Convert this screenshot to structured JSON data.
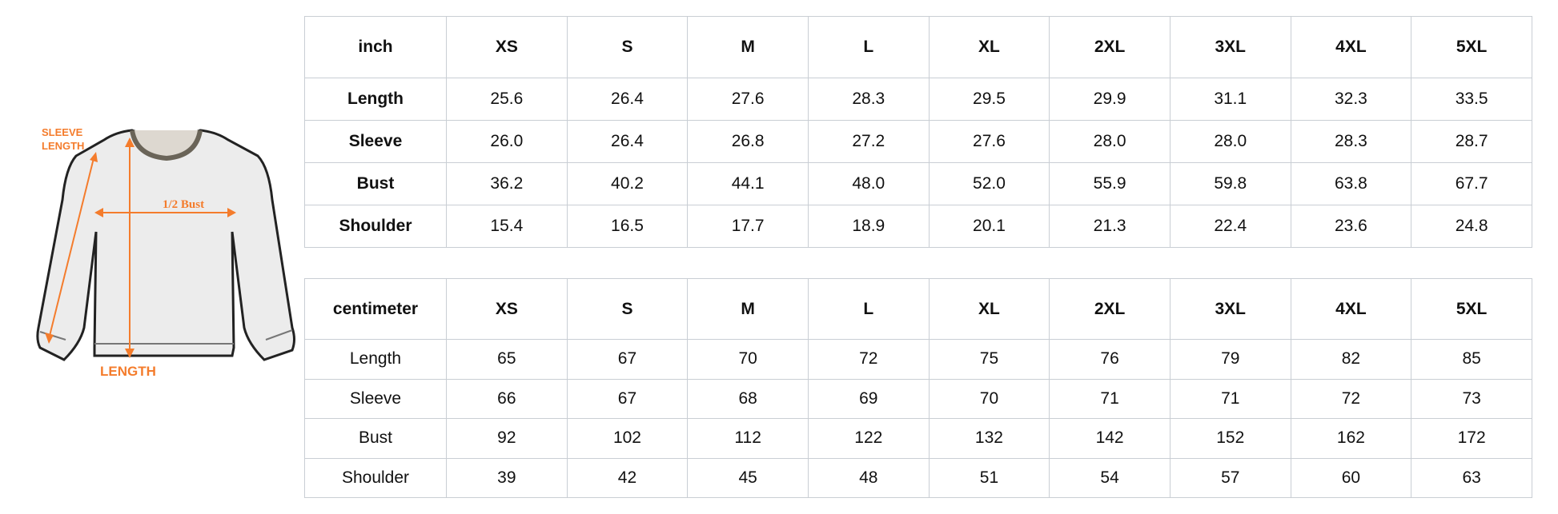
{
  "diagram": {
    "sleeve_length_label_1": "SLEEVE",
    "sleeve_length_label_2": "LENGTH",
    "bust_label": "1/2 Bust",
    "length_label": "LENGTH",
    "accent_color": "#f47c2c"
  },
  "inch_table": {
    "unit": "inch",
    "sizes": [
      "XS",
      "S",
      "M",
      "L",
      "XL",
      "2XL",
      "3XL",
      "4XL",
      "5XL"
    ],
    "rows": [
      {
        "label": "Length",
        "values": [
          "25.6",
          "26.4",
          "27.6",
          "28.3",
          "29.5",
          "29.9",
          "31.1",
          "32.3",
          "33.5"
        ]
      },
      {
        "label": "Sleeve",
        "values": [
          "26.0",
          "26.4",
          "26.8",
          "27.2",
          "27.6",
          "28.0",
          "28.0",
          "28.3",
          "28.7"
        ]
      },
      {
        "label": "Bust",
        "values": [
          "36.2",
          "40.2",
          "44.1",
          "48.0",
          "52.0",
          "55.9",
          "59.8",
          "63.8",
          "67.7"
        ]
      },
      {
        "label": "Shoulder",
        "values": [
          "15.4",
          "16.5",
          "17.7",
          "18.9",
          "20.1",
          "21.3",
          "22.4",
          "23.6",
          "24.8"
        ]
      }
    ]
  },
  "cm_table": {
    "unit": "centimeter",
    "sizes": [
      "XS",
      "S",
      "M",
      "L",
      "XL",
      "2XL",
      "3XL",
      "4XL",
      "5XL"
    ],
    "rows": [
      {
        "label": "Length",
        "values": [
          "65",
          "67",
          "70",
          "72",
          "75",
          "76",
          "79",
          "82",
          "85"
        ]
      },
      {
        "label": "Sleeve",
        "values": [
          "66",
          "67",
          "68",
          "69",
          "70",
          "71",
          "71",
          "72",
          "73"
        ]
      },
      {
        "label": "Bust",
        "values": [
          "92",
          "102",
          "112",
          "122",
          "132",
          "142",
          "152",
          "162",
          "172"
        ]
      },
      {
        "label": "Shoulder",
        "values": [
          "39",
          "42",
          "45",
          "48",
          "51",
          "54",
          "57",
          "60",
          "63"
        ]
      }
    ]
  }
}
